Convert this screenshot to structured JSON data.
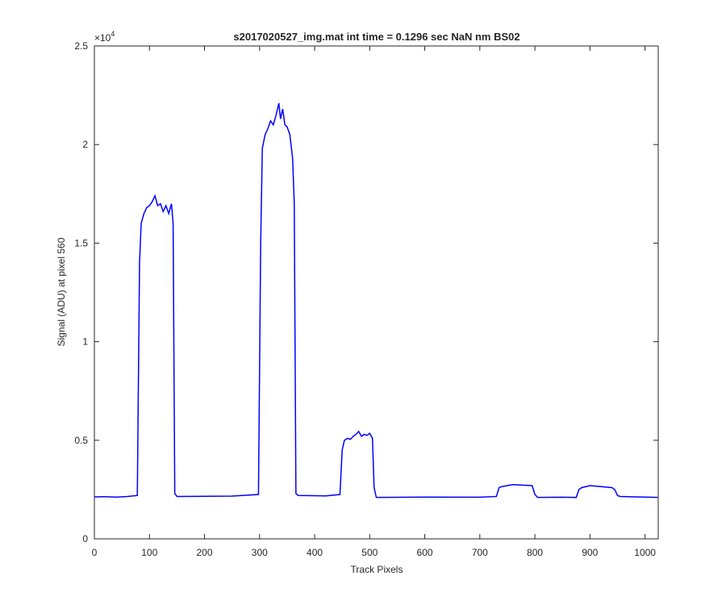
{
  "chart_data": {
    "type": "line",
    "title": "s2017020527_img.mat int time = 0.1296 sec  NaN nm BS02",
    "x_label": "Track Pixels",
    "y_label": "Signal (ADU) at pixel 560",
    "y_multiplier": {
      "base": "×10",
      "power": "4"
    },
    "xlim": [
      0,
      1024
    ],
    "ylim": [
      0,
      25000
    ],
    "xticks": [
      0,
      100,
      200,
      300,
      400,
      500,
      600,
      700,
      800,
      900,
      1000
    ],
    "yticks": [
      0,
      {
        "value": 5000,
        "label": "0.5"
      },
      {
        "value": 10000,
        "label": "1"
      },
      {
        "value": 15000,
        "label": "1.5"
      },
      {
        "value": 20000,
        "label": "2"
      },
      {
        "value": 25000,
        "label": "2.5"
      }
    ],
    "grid": false,
    "series": [
      {
        "color": "#0000ff",
        "x": [
          0,
          20,
          40,
          60,
          78,
          82,
          85,
          90,
          95,
          100,
          105,
          110,
          115,
          120,
          125,
          130,
          135,
          140,
          143,
          146,
          150,
          200,
          250,
          298,
          302,
          305,
          310,
          315,
          320,
          325,
          330,
          335,
          338,
          342,
          346,
          350,
          355,
          360,
          363,
          366,
          370,
          420,
          446,
          450,
          454,
          460,
          465,
          470,
          475,
          480,
          485,
          490,
          495,
          500,
          505,
          508,
          512,
          600,
          700,
          730,
          735,
          740,
          760,
          780,
          795,
          800,
          805,
          850,
          875,
          880,
          885,
          900,
          920,
          940,
          945,
          950,
          955,
          1000,
          1023
        ],
        "values": [
          2130,
          2140,
          2120,
          2150,
          2200,
          14000,
          16000,
          16500,
          16800,
          16900,
          17100,
          17400,
          16900,
          17000,
          16600,
          16900,
          16500,
          17000,
          16000,
          2300,
          2150,
          2160,
          2170,
          2250,
          15000,
          19800,
          20500,
          20800,
          21200,
          21000,
          21500,
          22100,
          21300,
          21800,
          21000,
          20900,
          20500,
          19300,
          17000,
          2300,
          2200,
          2180,
          2250,
          4500,
          5000,
          5100,
          5050,
          5200,
          5300,
          5450,
          5200,
          5300,
          5250,
          5350,
          5100,
          2600,
          2100,
          2120,
          2110,
          2150,
          2600,
          2650,
          2750,
          2720,
          2700,
          2250,
          2100,
          2110,
          2100,
          2500,
          2600,
          2700,
          2650,
          2600,
          2500,
          2200,
          2150,
          2120,
          2100
        ]
      }
    ]
  }
}
